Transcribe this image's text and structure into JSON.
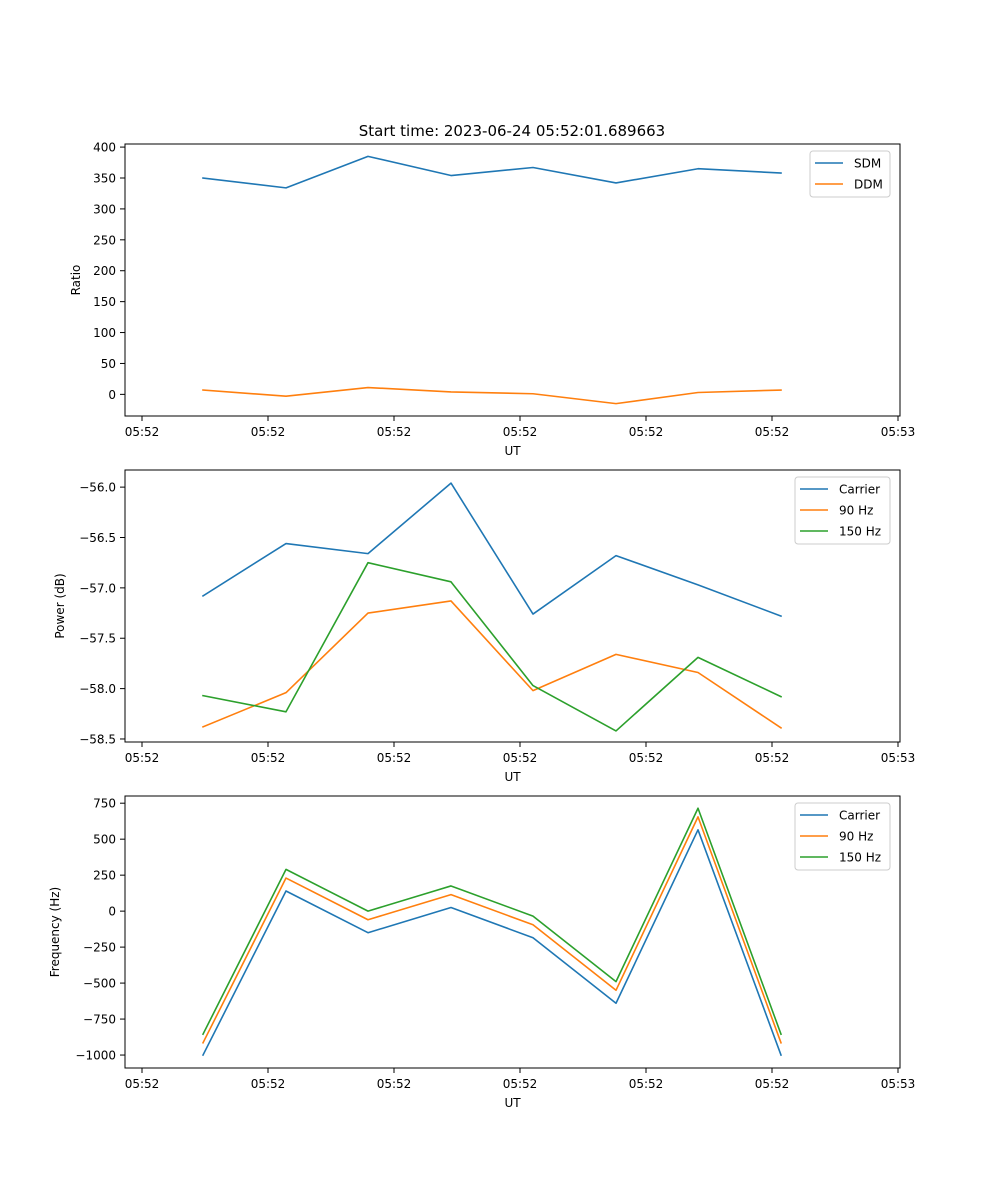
{
  "figure": {
    "title": "Start time: 2023-06-24 05:52:01.689663"
  },
  "chart_data": [
    {
      "type": "line",
      "xlabel": "UT",
      "ylabel": "Ratio",
      "xticklabels": [
        "05:52",
        "05:52",
        "05:52",
        "05:52",
        "05:52",
        "05:52",
        "05:53"
      ],
      "yticks": [
        0,
        50,
        100,
        150,
        200,
        250,
        300,
        350,
        400
      ],
      "yticklabels": [
        "0",
        "50",
        "100",
        "150",
        "200",
        "250",
        "300",
        "350",
        "400"
      ],
      "ylim": [
        -35,
        405
      ],
      "legend": "top-right",
      "series": [
        {
          "name": "SDM",
          "color": "#1f77b4",
          "values": [
            350,
            334,
            385,
            354,
            367,
            342,
            365,
            358
          ]
        },
        {
          "name": "DDM",
          "color": "#ff7f0e",
          "values": [
            7,
            -3,
            11,
            4,
            1,
            -15,
            3,
            7
          ]
        }
      ]
    },
    {
      "type": "line",
      "xlabel": "UT",
      "ylabel": "Power (dB)",
      "xticklabels": [
        "05:52",
        "05:52",
        "05:52",
        "05:52",
        "05:52",
        "05:52",
        "05:53"
      ],
      "yticks": [
        -58.5,
        -58.0,
        -57.5,
        -57.0,
        -56.5,
        -56.0
      ],
      "yticklabels": [
        "−58.5",
        "−58.0",
        "−57.5",
        "−57.0",
        "−56.5",
        "−56.0"
      ],
      "ylim": [
        -58.53,
        -55.83
      ],
      "legend": "top-right",
      "series": [
        {
          "name": "Carrier",
          "color": "#1f77b4",
          "values": [
            -57.08,
            -56.56,
            -56.66,
            -55.96,
            -57.26,
            -56.68,
            -56.97,
            -57.28
          ]
        },
        {
          "name": "90 Hz",
          "color": "#ff7f0e",
          "values": [
            -58.38,
            -58.04,
            -57.25,
            -57.13,
            -58.02,
            -57.66,
            -57.84,
            -58.39
          ]
        },
        {
          "name": "150 Hz",
          "color": "#2ca02c",
          "values": [
            -58.07,
            -58.23,
            -56.75,
            -56.94,
            -57.97,
            -58.42,
            -57.69,
            -58.08
          ]
        }
      ]
    },
    {
      "type": "line",
      "xlabel": "UT",
      "ylabel": "Frequency (Hz)",
      "xticklabels": [
        "05:52",
        "05:52",
        "05:52",
        "05:52",
        "05:52",
        "05:52",
        "05:53"
      ],
      "yticks": [
        -1000,
        -750,
        -500,
        -250,
        0,
        250,
        500,
        750
      ],
      "yticklabels": [
        "−1000",
        "−750",
        "−500",
        "−250",
        "0",
        "250",
        "500",
        "750"
      ],
      "ylim": [
        -1090,
        800
      ],
      "legend": "top-right",
      "series": [
        {
          "name": "Carrier",
          "color": "#1f77b4",
          "values": [
            -1000,
            140,
            -150,
            25,
            -185,
            -640,
            565,
            -1000
          ]
        },
        {
          "name": "90 Hz",
          "color": "#ff7f0e",
          "values": [
            -915,
            230,
            -60,
            115,
            -95,
            -550,
            655,
            -915
          ]
        },
        {
          "name": "150 Hz",
          "color": "#2ca02c",
          "values": [
            -855,
            290,
            0,
            175,
            -35,
            -490,
            715,
            -855
          ]
        }
      ]
    }
  ]
}
